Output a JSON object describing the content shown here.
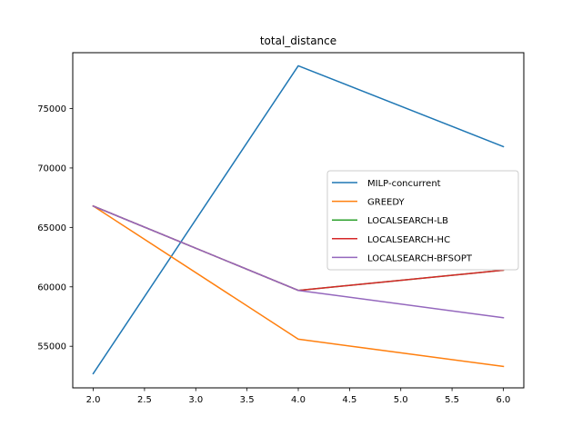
{
  "chart_data": {
    "type": "line",
    "title": "total_distance",
    "xlabel": "",
    "ylabel": "",
    "x": [
      2.0,
      4.0,
      6.0
    ],
    "xlim": [
      1.8,
      6.2
    ],
    "ylim": [
      51500,
      79700
    ],
    "xticks": [
      2.0,
      2.5,
      3.0,
      3.5,
      4.0,
      4.5,
      5.0,
      5.5,
      6.0
    ],
    "xtick_labels": [
      "2.0",
      "2.5",
      "3.0",
      "3.5",
      "4.0",
      "4.5",
      "5.0",
      "5.5",
      "6.0"
    ],
    "yticks": [
      55000,
      60000,
      65000,
      70000,
      75000
    ],
    "ytick_labels": [
      "55000",
      "60000",
      "65000",
      "70000",
      "75000"
    ],
    "grid": false,
    "legend_position": "center-right",
    "series": [
      {
        "name": "MILP-concurrent",
        "color": "#1f77b4",
        "values": [
          52700,
          78600,
          71800
        ]
      },
      {
        "name": "GREEDY",
        "color": "#ff7f0e",
        "values": [
          66800,
          55600,
          53300
        ]
      },
      {
        "name": "LOCALSEARCH-LB",
        "color": "#2ca02c",
        "values": [
          66800,
          59700,
          61400
        ]
      },
      {
        "name": "LOCALSEARCH-HC",
        "color": "#d62728",
        "values": [
          66800,
          59700,
          61400
        ]
      },
      {
        "name": "LOCALSEARCH-BFSOPT",
        "color": "#9467bd",
        "values": [
          66800,
          59700,
          57400
        ]
      }
    ]
  }
}
